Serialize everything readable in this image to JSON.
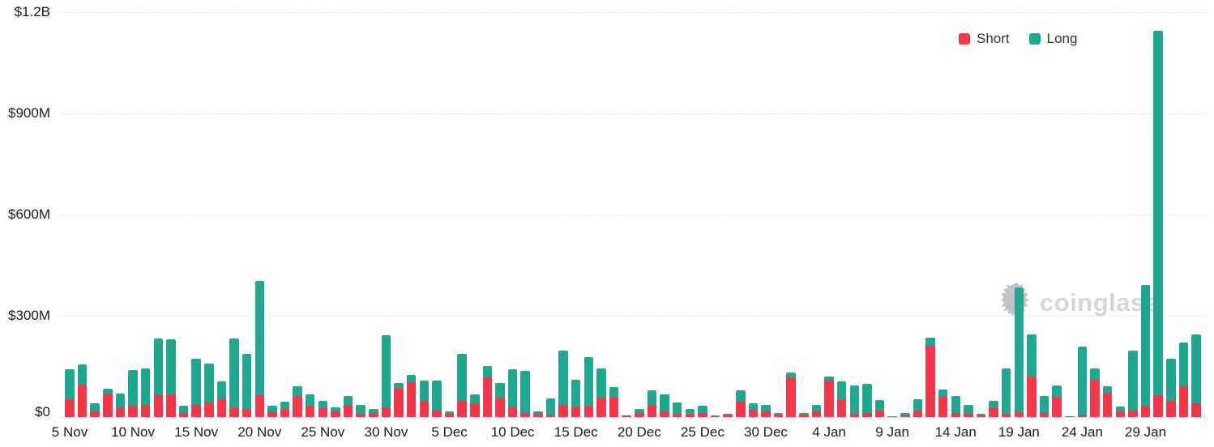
{
  "legend": {
    "items": [
      {
        "label": "Short",
        "color": "#f2394b"
      },
      {
        "label": "Long",
        "color": "#21a78f"
      }
    ]
  },
  "watermark": {
    "text": "coinglass"
  },
  "y_axis": {
    "ticks": [
      {
        "label": "$0",
        "value_M": 0
      },
      {
        "label": "$300M",
        "value_M": 300
      },
      {
        "label": "$600M",
        "value_M": 600
      },
      {
        "label": "$900M",
        "value_M": 900
      },
      {
        "label": "$1.2B",
        "value_M": 1200
      }
    ]
  },
  "chart_data": {
    "type": "bar",
    "stacked": true,
    "units": "USD millions",
    "ylim": [
      0,
      1200
    ],
    "grid": "horizontal dashed",
    "legend_position": "top-right",
    "x_tick_every": 5,
    "categories": [
      "5 Nov",
      "6 Nov",
      "7 Nov",
      "8 Nov",
      "9 Nov",
      "10 Nov",
      "11 Nov",
      "12 Nov",
      "13 Nov",
      "14 Nov",
      "15 Nov",
      "16 Nov",
      "17 Nov",
      "18 Nov",
      "19 Nov",
      "20 Nov",
      "21 Nov",
      "22 Nov",
      "23 Nov",
      "24 Nov",
      "25 Nov",
      "26 Nov",
      "27 Nov",
      "28 Nov",
      "29 Nov",
      "30 Nov",
      "1 Dec",
      "2 Dec",
      "3 Dec",
      "4 Dec",
      "5 Dec",
      "6 Dec",
      "7 Dec",
      "8 Dec",
      "9 Dec",
      "10 Dec",
      "11 Dec",
      "12 Dec",
      "13 Dec",
      "14 Dec",
      "15 Dec",
      "16 Dec",
      "17 Dec",
      "18 Dec",
      "19 Dec",
      "20 Dec",
      "21 Dec",
      "22 Dec",
      "23 Dec",
      "24 Dec",
      "25 Dec",
      "26 Dec",
      "27 Dec",
      "28 Dec",
      "29 Dec",
      "30 Dec",
      "31 Dec",
      "1 Jan",
      "2 Jan",
      "3 Jan",
      "4 Jan",
      "5 Jan",
      "6 Jan",
      "7 Jan",
      "8 Jan",
      "9 Jan",
      "10 Jan",
      "11 Jan",
      "12 Jan",
      "13 Jan",
      "14 Jan",
      "15 Jan",
      "16 Jan",
      "17 Jan",
      "18 Jan",
      "19 Jan",
      "20 Jan",
      "21 Jan",
      "22 Jan",
      "23 Jan",
      "24 Jan",
      "25 Jan",
      "26 Jan",
      "27 Jan",
      "28 Jan",
      "29 Jan",
      "30 Jan",
      "31 Jan",
      "1 Feb",
      "2 Feb"
    ],
    "x_tick_labels": [
      "5 Nov",
      "10 Nov",
      "15 Nov",
      "20 Nov",
      "25 Nov",
      "30 Nov",
      "5 Dec",
      "10 Dec",
      "15 Dec",
      "20 Dec",
      "25 Dec",
      "30 Dec",
      "4 Jan",
      "9 Jan",
      "14 Jan",
      "19 Jan",
      "24 Jan",
      "29 Jan"
    ],
    "series": [
      {
        "name": "Short",
        "color": "#f2394b",
        "values": [
          53,
          97,
          16,
          69,
          29,
          33,
          35,
          64,
          68,
          13,
          36,
          44,
          55,
          30,
          25,
          66,
          14,
          24,
          63,
          33,
          27,
          16,
          36,
          10,
          13,
          28,
          87,
          103,
          48,
          20,
          9,
          48,
          41,
          118,
          58,
          29,
          13,
          10,
          6,
          37,
          32,
          34,
          58,
          60,
          4,
          12,
          37,
          16,
          10,
          9,
          13,
          3,
          7,
          46,
          21,
          18,
          7,
          117,
          7,
          18,
          107,
          53,
          10,
          13,
          20,
          1,
          6,
          20,
          212,
          60,
          13,
          10,
          6,
          26,
          10,
          15,
          121,
          13,
          60,
          1,
          6,
          111,
          71,
          17,
          20,
          34,
          66,
          48,
          92,
          42
        ]
      },
      {
        "name": "Long",
        "color": "#21a78f",
        "values": [
          89,
          60,
          24,
          14,
          41,
          106,
          109,
          170,
          162,
          20,
          137,
          114,
          50,
          203,
          162,
          338,
          19,
          21,
          28,
          34,
          21,
          14,
          27,
          26,
          10,
          214,
          14,
          22,
          59,
          87,
          7,
          140,
          26,
          34,
          43,
          113,
          124,
          7,
          50,
          161,
          78,
          143,
          85,
          29,
          2,
          12,
          42,
          51,
          34,
          14,
          21,
          3,
          3,
          33,
          19,
          18,
          5,
          14,
          6,
          18,
          14,
          52,
          83,
          86,
          30,
          2,
          6,
          33,
          24,
          21,
          50,
          26,
          4,
          23,
          135,
          368,
          125,
          50,
          33,
          1,
          202,
          33,
          20,
          15,
          176,
          358,
          1079,
          125,
          130,
          202
        ]
      }
    ]
  }
}
